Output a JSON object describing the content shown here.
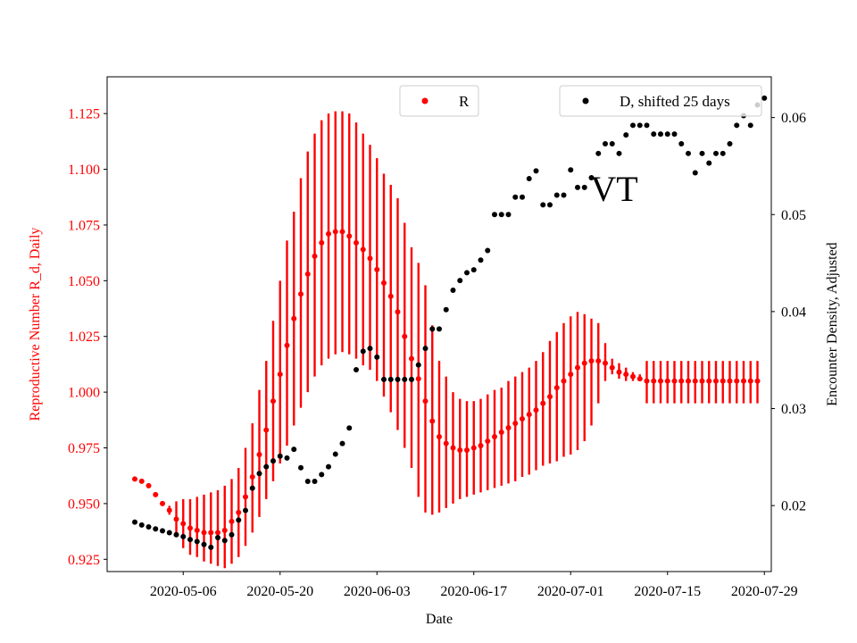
{
  "chart_data": {
    "type": "scatter",
    "title": "",
    "annotation": "VT",
    "xlabel": "Date",
    "ylabel_left": "Reproductive Number R_d, Daily",
    "ylabel_right": "Encounter Density, Adjusted",
    "x_tick_labels": [
      "2020-05-06",
      "2020-05-20",
      "2020-06-03",
      "2020-06-17",
      "2020-07-01",
      "2020-07-15",
      "2020-07-29"
    ],
    "y_left_tick_labels": [
      "0.925",
      "0.950",
      "0.975",
      "1.000",
      "1.025",
      "1.050",
      "1.075",
      "1.100",
      "1.125"
    ],
    "y_right_tick_labels": [
      "0.02",
      "0.03",
      "0.04",
      "0.05",
      "0.06"
    ],
    "x_start_date": "2020-04-29",
    "xlim_days": [
      -4,
      92
    ],
    "ylim_left": [
      0.9195,
      1.1415
    ],
    "ylim_right": [
      0.0132,
      0.0642
    ],
    "legend": [
      {
        "label": "R",
        "position": "top-center"
      },
      {
        "label": "D, shifted 25 days",
        "position": "top-right"
      }
    ],
    "series": [
      {
        "name": "R",
        "axis": "left",
        "color": "#ff0000",
        "error_bars": true,
        "points": [
          [
            0,
            0.961,
            0.961,
            0.961
          ],
          [
            1,
            0.96,
            0.96,
            0.96
          ],
          [
            2,
            0.958,
            0.958,
            0.958
          ],
          [
            3,
            0.954,
            0.954,
            0.954
          ],
          [
            4,
            0.95,
            0.95,
            0.95
          ],
          [
            5,
            0.947,
            0.945,
            0.949
          ],
          [
            6,
            0.943,
            0.935,
            0.951
          ],
          [
            7,
            0.941,
            0.93,
            0.952
          ],
          [
            8,
            0.939,
            0.927,
            0.952
          ],
          [
            9,
            0.938,
            0.926,
            0.953
          ],
          [
            10,
            0.937,
            0.924,
            0.954
          ],
          [
            11,
            0.937,
            0.923,
            0.955
          ],
          [
            12,
            0.937,
            0.922,
            0.956
          ],
          [
            13,
            0.938,
            0.921,
            0.958
          ],
          [
            14,
            0.942,
            0.923,
            0.961
          ],
          [
            15,
            0.946,
            0.926,
            0.966
          ],
          [
            16,
            0.953,
            0.931,
            0.975
          ],
          [
            17,
            0.962,
            0.937,
            0.986
          ],
          [
            18,
            0.972,
            0.944,
            1.001
          ],
          [
            19,
            0.983,
            0.952,
            1.014
          ],
          [
            20,
            0.996,
            0.96,
            1.032
          ],
          [
            21,
            1.008,
            0.968,
            1.05
          ],
          [
            22,
            1.021,
            0.976,
            1.068
          ],
          [
            23,
            1.033,
            0.985,
            1.081
          ],
          [
            24,
            1.044,
            0.993,
            1.096
          ],
          [
            25,
            1.053,
            1.0,
            1.108
          ],
          [
            26,
            1.061,
            1.007,
            1.116
          ],
          [
            27,
            1.067,
            1.012,
            1.122
          ],
          [
            28,
            1.071,
            1.015,
            1.125
          ],
          [
            29,
            1.072,
            1.017,
            1.126
          ],
          [
            30,
            1.072,
            1.018,
            1.126
          ],
          [
            31,
            1.07,
            1.017,
            1.125
          ],
          [
            32,
            1.067,
            1.015,
            1.121
          ],
          [
            33,
            1.064,
            1.012,
            1.116
          ],
          [
            34,
            1.06,
            1.01,
            1.111
          ],
          [
            35,
            1.055,
            1.005,
            1.105
          ],
          [
            36,
            1.049,
            0.998,
            1.098
          ],
          [
            37,
            1.043,
            0.991,
            1.093
          ],
          [
            38,
            1.036,
            0.983,
            1.087
          ],
          [
            39,
            1.025,
            0.975,
            1.076
          ],
          [
            40,
            1.015,
            0.966,
            1.065
          ],
          [
            41,
            1.006,
            0.953,
            1.058
          ],
          [
            42,
            0.996,
            0.946,
            1.048
          ],
          [
            43,
            0.987,
            0.945,
            1.03
          ],
          [
            44,
            0.98,
            0.946,
            1.014
          ],
          [
            45,
            0.977,
            0.948,
            1.007
          ],
          [
            46,
            0.975,
            0.95,
            1.0
          ],
          [
            47,
            0.974,
            0.952,
            0.997
          ],
          [
            48,
            0.974,
            0.953,
            0.996
          ],
          [
            49,
            0.975,
            0.954,
            0.996
          ],
          [
            50,
            0.976,
            0.955,
            0.997
          ],
          [
            51,
            0.978,
            0.956,
            0.999
          ],
          [
            52,
            0.98,
            0.957,
            1.001
          ],
          [
            53,
            0.982,
            0.958,
            1.002
          ],
          [
            54,
            0.984,
            0.959,
            1.005
          ],
          [
            55,
            0.986,
            0.96,
            1.007
          ],
          [
            56,
            0.988,
            0.962,
            1.009
          ],
          [
            57,
            0.99,
            0.963,
            1.011
          ],
          [
            58,
            0.992,
            0.965,
            1.014
          ],
          [
            59,
            0.995,
            0.967,
            1.018
          ],
          [
            60,
            0.998,
            0.968,
            1.023
          ],
          [
            61,
            1.002,
            0.969,
            1.027
          ],
          [
            62,
            1.005,
            0.971,
            1.031
          ],
          [
            63,
            1.008,
            0.972,
            1.034
          ],
          [
            64,
            1.011,
            0.974,
            1.036
          ],
          [
            65,
            1.013,
            0.978,
            1.035
          ],
          [
            66,
            1.014,
            0.985,
            1.033
          ],
          [
            67,
            1.014,
            0.995,
            1.031
          ],
          [
            68,
            1.013,
            1.005,
            1.022
          ],
          [
            69,
            1.011,
            1.008,
            1.015
          ],
          [
            70,
            1.009,
            1.006,
            1.013
          ],
          [
            71,
            1.008,
            1.005,
            1.011
          ],
          [
            72,
            1.007,
            1.005,
            1.009
          ],
          [
            73,
            1.006,
            1.005,
            1.008
          ],
          [
            74,
            1.005,
            0.995,
            1.014
          ],
          [
            75,
            1.005,
            0.995,
            1.014
          ],
          [
            76,
            1.005,
            0.995,
            1.014
          ],
          [
            77,
            1.005,
            0.995,
            1.014
          ],
          [
            78,
            1.005,
            0.995,
            1.014
          ],
          [
            79,
            1.005,
            0.995,
            1.014
          ],
          [
            80,
            1.005,
            0.995,
            1.014
          ],
          [
            81,
            1.005,
            0.995,
            1.014
          ],
          [
            82,
            1.005,
            0.995,
            1.014
          ],
          [
            83,
            1.005,
            0.995,
            1.014
          ],
          [
            84,
            1.005,
            0.995,
            1.014
          ],
          [
            85,
            1.005,
            0.995,
            1.014
          ],
          [
            86,
            1.005,
            0.995,
            1.014
          ],
          [
            87,
            1.005,
            0.995,
            1.014
          ],
          [
            88,
            1.005,
            0.995,
            1.014
          ],
          [
            89,
            1.005,
            0.995,
            1.014
          ],
          [
            90,
            1.005,
            0.995,
            1.014
          ]
        ]
      },
      {
        "name": "D, shifted 25 days",
        "axis": "right",
        "color": "#000000",
        "points": [
          [
            0,
            0.0183
          ],
          [
            1,
            0.018
          ],
          [
            2,
            0.0178
          ],
          [
            3,
            0.0176
          ],
          [
            4,
            0.0174
          ],
          [
            5,
            0.0172
          ],
          [
            6,
            0.017
          ],
          [
            7,
            0.0168
          ],
          [
            8,
            0.0165
          ],
          [
            9,
            0.0163
          ],
          [
            10,
            0.016
          ],
          [
            11,
            0.0157
          ],
          [
            12,
            0.0167
          ],
          [
            13,
            0.0164
          ],
          [
            14,
            0.017
          ],
          [
            15,
            0.0185
          ],
          [
            16,
            0.0195
          ],
          [
            17,
            0.0218
          ],
          [
            18,
            0.0233
          ],
          [
            19,
            0.024
          ],
          [
            20,
            0.0246
          ],
          [
            21,
            0.0251
          ],
          [
            22,
            0.0249
          ],
          [
            23,
            0.0258
          ],
          [
            24,
            0.0239
          ],
          [
            25,
            0.0225
          ],
          [
            26,
            0.0225
          ],
          [
            27,
            0.0232
          ],
          [
            28,
            0.024
          ],
          [
            29,
            0.0253
          ],
          [
            30,
            0.0264
          ],
          [
            31,
            0.028
          ],
          [
            32,
            0.034
          ],
          [
            33,
            0.0359
          ],
          [
            34,
            0.0362
          ],
          [
            35,
            0.0353
          ],
          [
            36,
            0.033
          ],
          [
            37,
            0.033
          ],
          [
            38,
            0.033
          ],
          [
            39,
            0.033
          ],
          [
            40,
            0.033
          ],
          [
            41,
            0.0345
          ],
          [
            42,
            0.0362
          ],
          [
            43,
            0.0382
          ],
          [
            44,
            0.0382
          ],
          [
            45,
            0.0402
          ],
          [
            46,
            0.0422
          ],
          [
            47,
            0.0432
          ],
          [
            48,
            0.044
          ],
          [
            49,
            0.0443
          ],
          [
            50,
            0.0453
          ],
          [
            51,
            0.0463
          ],
          [
            52,
            0.05
          ],
          [
            53,
            0.05
          ],
          [
            54,
            0.05
          ],
          [
            55,
            0.0518
          ],
          [
            56,
            0.0518
          ],
          [
            57,
            0.0537
          ],
          [
            58,
            0.0545
          ],
          [
            59,
            0.051
          ],
          [
            60,
            0.051
          ],
          [
            61,
            0.052
          ],
          [
            62,
            0.052
          ],
          [
            63,
            0.0546
          ],
          [
            64,
            0.0528
          ],
          [
            65,
            0.0528
          ],
          [
            66,
            0.0538
          ],
          [
            67,
            0.0563
          ],
          [
            68,
            0.0573
          ],
          [
            69,
            0.0573
          ],
          [
            70,
            0.0563
          ],
          [
            71,
            0.0582
          ],
          [
            72,
            0.0592
          ],
          [
            73,
            0.0592
          ],
          [
            74,
            0.0592
          ],
          [
            75,
            0.0583
          ],
          [
            76,
            0.0583
          ],
          [
            77,
            0.0583
          ],
          [
            78,
            0.0583
          ],
          [
            79,
            0.0573
          ],
          [
            80,
            0.0563
          ],
          [
            81,
            0.0543
          ],
          [
            82,
            0.0563
          ],
          [
            83,
            0.0553
          ],
          [
            84,
            0.0563
          ],
          [
            85,
            0.0563
          ],
          [
            86,
            0.0573
          ],
          [
            87,
            0.0592
          ],
          [
            88,
            0.0602
          ],
          [
            89,
            0.0592
          ],
          [
            90,
            0.0613
          ],
          [
            91,
            0.062
          ]
        ]
      }
    ]
  }
}
